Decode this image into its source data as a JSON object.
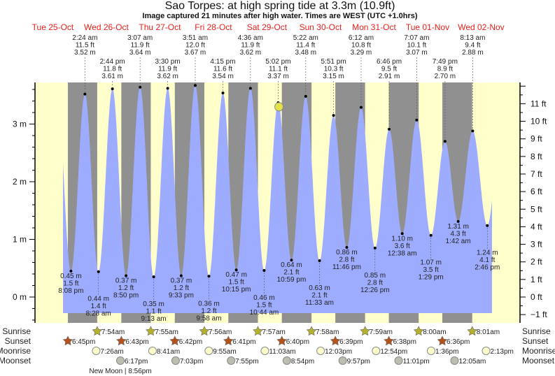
{
  "chart_data": {
    "type": "area",
    "title": "Sao Torpes: at high  spring tide at 3.3m (10.9ft)",
    "subtitle": "Image captured 21 minutes after high water. Times are WEST (UTC +1.0hrs)",
    "ylabel_left_unit": "m",
    "ylabel_right_unit": "ft",
    "left_ticks": [
      "0 m",
      "1 m",
      "2 m",
      "3 m"
    ],
    "left_tick_values": [
      0,
      1,
      2,
      3
    ],
    "right_ticks": [
      "−1 ft",
      "0 ft",
      "1 ft",
      "2 ft",
      "3 ft",
      "4 ft",
      "5 ft",
      "6 ft",
      "7 ft",
      "8 ft",
      "9 ft",
      "10 ft",
      "11 ft"
    ],
    "right_tick_values": [
      -1,
      0,
      1,
      2,
      3,
      4,
      5,
      6,
      7,
      8,
      9,
      10,
      11
    ],
    "days": [
      {
        "name": "Tue",
        "date": "25-Oct"
      },
      {
        "name": "Wed",
        "date": "26-Oct"
      },
      {
        "name": "Thu",
        "date": "27-Oct"
      },
      {
        "name": "Fri",
        "date": "28-Oct"
      },
      {
        "name": "Sat",
        "date": "29-Oct"
      },
      {
        "name": "Sun",
        "date": "30-Oct"
      },
      {
        "name": "Mon",
        "date": "31-Oct"
      },
      {
        "name": "Tue",
        "date": "01-Nov"
      },
      {
        "name": "Wed",
        "date": "02-Nov"
      }
    ],
    "tides": [
      {
        "type": "low",
        "day": 0,
        "time": "8:08 pm",
        "ft": "1.5 ft",
        "m": "0.45 m",
        "value": 0.45
      },
      {
        "type": "high",
        "day": 1,
        "time": "2:24 am",
        "ft": "11.5 ft",
        "m": "3.52 m",
        "value": 3.52
      },
      {
        "type": "low",
        "day": 1,
        "time": "8:28 am",
        "ft": "1.4 ft",
        "m": "0.44 m",
        "value": 0.44
      },
      {
        "type": "high",
        "day": 1,
        "time": "2:44 pm",
        "ft": "11.8 ft",
        "m": "3.61 m",
        "value": 3.61
      },
      {
        "type": "low",
        "day": 1,
        "time": "8:50 pm",
        "ft": "1.2 ft",
        "m": "0.37 m",
        "value": 0.37
      },
      {
        "type": "high",
        "day": 2,
        "time": "3:07 am",
        "ft": "11.9 ft",
        "m": "3.64 m",
        "value": 3.64
      },
      {
        "type": "low",
        "day": 2,
        "time": "9:13 am",
        "ft": "1.1 ft",
        "m": "0.35 m",
        "value": 0.35
      },
      {
        "type": "high",
        "day": 2,
        "time": "3:30 pm",
        "ft": "11.9 ft",
        "m": "3.62 m",
        "value": 3.62
      },
      {
        "type": "low",
        "day": 2,
        "time": "9:33 pm",
        "ft": "1.2 ft",
        "m": "0.37 m",
        "value": 0.37
      },
      {
        "type": "high",
        "day": 3,
        "time": "3:51 am",
        "ft": "12.0 ft",
        "m": "3.67 m",
        "value": 3.67
      },
      {
        "type": "low",
        "day": 3,
        "time": "9:58 am",
        "ft": "1.2 ft",
        "m": "0.36 m",
        "value": 0.36
      },
      {
        "type": "high",
        "day": 3,
        "time": "4:15 pm",
        "ft": "11.6 ft",
        "m": "3.54 m",
        "value": 3.54
      },
      {
        "type": "low",
        "day": 3,
        "time": "10:15 pm",
        "ft": "1.5 ft",
        "m": "0.47 m",
        "value": 0.47
      },
      {
        "type": "high",
        "day": 4,
        "time": "4:36 am",
        "ft": "11.9 ft",
        "m": "3.62 m",
        "value": 3.62
      },
      {
        "type": "low",
        "day": 4,
        "time": "10:44 am",
        "ft": "1.5 ft",
        "m": "0.46 m",
        "value": 0.46
      },
      {
        "type": "high",
        "day": 4,
        "time": "5:02 pm",
        "ft": "11.1 ft",
        "m": "3.37 m",
        "value": 3.37
      },
      {
        "type": "low",
        "day": 4,
        "time": "10:59 pm",
        "ft": "2.1 ft",
        "m": "0.64 m",
        "value": 0.64
      },
      {
        "type": "high",
        "day": 5,
        "time": "5:22 am",
        "ft": "11.4 ft",
        "m": "3.48 m",
        "value": 3.48
      },
      {
        "type": "low",
        "day": 5,
        "time": "11:33 am",
        "ft": "2.1 ft",
        "m": "0.63 m",
        "value": 0.63
      },
      {
        "type": "high",
        "day": 5,
        "time": "5:51 pm",
        "ft": "10.3 ft",
        "m": "3.15 m",
        "value": 3.15
      },
      {
        "type": "low",
        "day": 5,
        "time": "11:46 pm",
        "ft": "2.8 ft",
        "m": "0.86 m",
        "value": 0.86
      },
      {
        "type": "high",
        "day": 6,
        "time": "6:12 am",
        "ft": "10.8 ft",
        "m": "3.29 m",
        "value": 3.29
      },
      {
        "type": "low",
        "day": 6,
        "time": "12:26 pm",
        "ft": "2.8 ft",
        "m": "0.85 m",
        "value": 0.85
      },
      {
        "type": "high",
        "day": 6,
        "time": "6:46 pm",
        "ft": "9.5 ft",
        "m": "2.91 m",
        "value": 2.91
      },
      {
        "type": "low",
        "day": 7,
        "time": "12:38 am",
        "ft": "3.6 ft",
        "m": "1.10 m",
        "value": 1.1
      },
      {
        "type": "high",
        "day": 7,
        "time": "7:07 am",
        "ft": "10.1 ft",
        "m": "3.07 m",
        "value": 3.07
      },
      {
        "type": "low",
        "day": 7,
        "time": "1:29 pm",
        "ft": "3.5 ft",
        "m": "1.07 m",
        "value": 1.07
      },
      {
        "type": "high",
        "day": 7,
        "time": "7:49 pm",
        "ft": "8.9 ft",
        "m": "2.70 m",
        "value": 2.7
      },
      {
        "type": "low",
        "day": 8,
        "time": "1:42 am",
        "ft": "4.3 ft",
        "m": "1.31 m",
        "value": 1.31
      },
      {
        "type": "high",
        "day": 8,
        "time": "8:13 am",
        "ft": "9.4 ft",
        "m": "2.88 m",
        "value": 2.88
      },
      {
        "type": "low",
        "day": 8,
        "time": "2:46 pm",
        "ft": "4.1 ft",
        "m": "1.24 m",
        "value": 1.24
      }
    ],
    "current": {
      "day": 4,
      "time": "5:23 pm",
      "value": 3.3
    },
    "rows": {
      "sunrise_label": "Sunrise",
      "sunset_label": "Sunset",
      "moonrise_label": "Moonrise",
      "moonset_label": "Moonset",
      "sunrise": [
        {
          "day": 1,
          "time": "7:54am"
        },
        {
          "day": 2,
          "time": "7:55am"
        },
        {
          "day": 3,
          "time": "7:56am"
        },
        {
          "day": 4,
          "time": "7:57am"
        },
        {
          "day": 5,
          "time": "7:58am"
        },
        {
          "day": 6,
          "time": "7:59am"
        },
        {
          "day": 7,
          "time": "8:00am"
        },
        {
          "day": 8,
          "time": "8:01am"
        }
      ],
      "sunset": [
        {
          "day": 0,
          "time": "6:45pm"
        },
        {
          "day": 1,
          "time": "6:43pm"
        },
        {
          "day": 2,
          "time": "6:42pm"
        },
        {
          "day": 3,
          "time": "6:41pm"
        },
        {
          "day": 4,
          "time": "6:40pm"
        },
        {
          "day": 5,
          "time": "6:39pm"
        },
        {
          "day": 6,
          "time": "6:38pm"
        },
        {
          "day": 7,
          "time": "6:36pm"
        }
      ],
      "moonrise": [
        {
          "day": 1,
          "time": "7:26am"
        },
        {
          "day": 2,
          "time": "8:41am"
        },
        {
          "day": 3,
          "time": "9:55am"
        },
        {
          "day": 4,
          "time": "11:03am"
        },
        {
          "day": 5,
          "time": "12:03pm"
        },
        {
          "day": 6,
          "time": "12:54pm"
        },
        {
          "day": 7,
          "time": "1:36pm"
        },
        {
          "day": 8,
          "time": "2:13pm"
        }
      ],
      "moonset": [
        {
          "day": 1,
          "time": "6:17pm"
        },
        {
          "day": 2,
          "time": "7:03pm"
        },
        {
          "day": 3,
          "time": "7:55pm"
        },
        {
          "day": 4,
          "time": "8:54pm"
        },
        {
          "day": 5,
          "time": "9:57pm"
        },
        {
          "day": 6,
          "time": "11:01pm"
        },
        {
          "day": 8,
          "time": "12:05am"
        }
      ],
      "moon_phase": "New Moon | 8:56pm"
    },
    "colors": {
      "day": "#ffffcc",
      "night": "#909090",
      "water": "#9eacff",
      "day_label": "#e8201c",
      "sunrise": "#b5b02e",
      "sunset": "#b5521c",
      "moonrise": "#ffffcc",
      "moonset": "#bdbdb0",
      "current": "#e6e34a"
    }
  }
}
